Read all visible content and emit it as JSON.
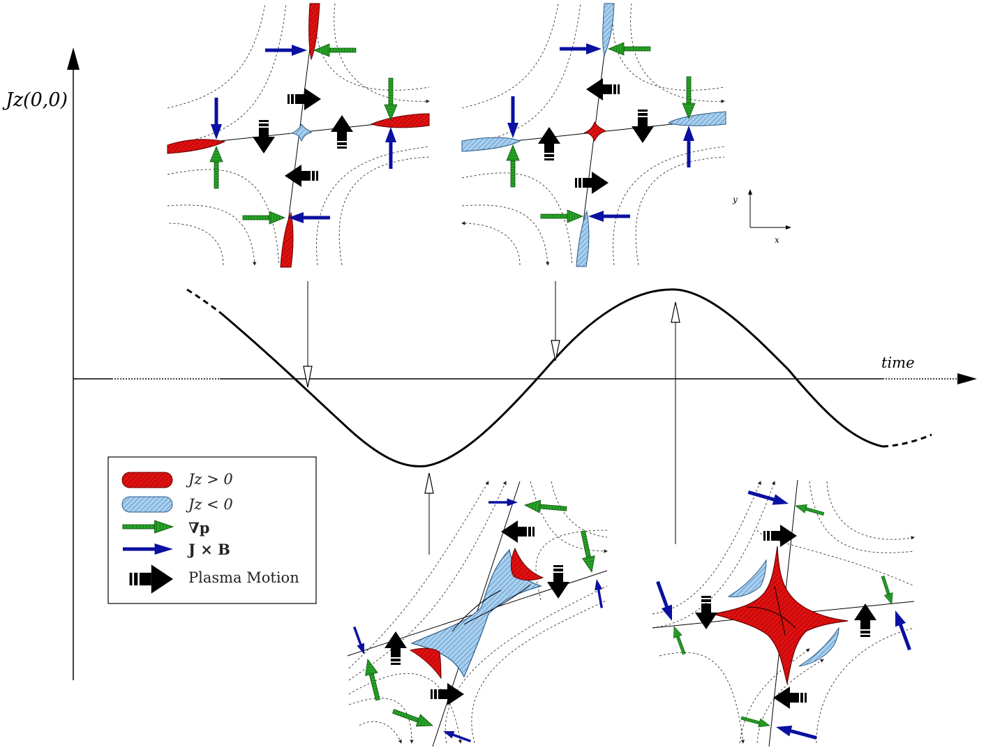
{
  "axes": {
    "y_label": "Jz(0,0)",
    "x_label": "time",
    "small_y": "y",
    "small_x": "x"
  },
  "legend": {
    "items": [
      {
        "label": "Jz > 0",
        "swatch": "red-blob",
        "color": "#e01010"
      },
      {
        "label": "Jz < 0",
        "swatch": "blue-blob",
        "color": "#9dc8ea"
      },
      {
        "label": "∇p",
        "swatch": "green-arrow",
        "color": "#1e9a1e"
      },
      {
        "label": "J × B",
        "swatch": "blue-arrow",
        "color": "#0a10a0"
      },
      {
        "label": "Plasma Motion",
        "swatch": "black-arrow",
        "color": "#000000"
      }
    ]
  },
  "colors": {
    "positive_current": "#e01010",
    "negative_current": "#9dc8ea",
    "pressure_gradient": "#1e9a1e",
    "lorentz_force": "#0a10a0",
    "plasma_motion": "#000000"
  }
}
